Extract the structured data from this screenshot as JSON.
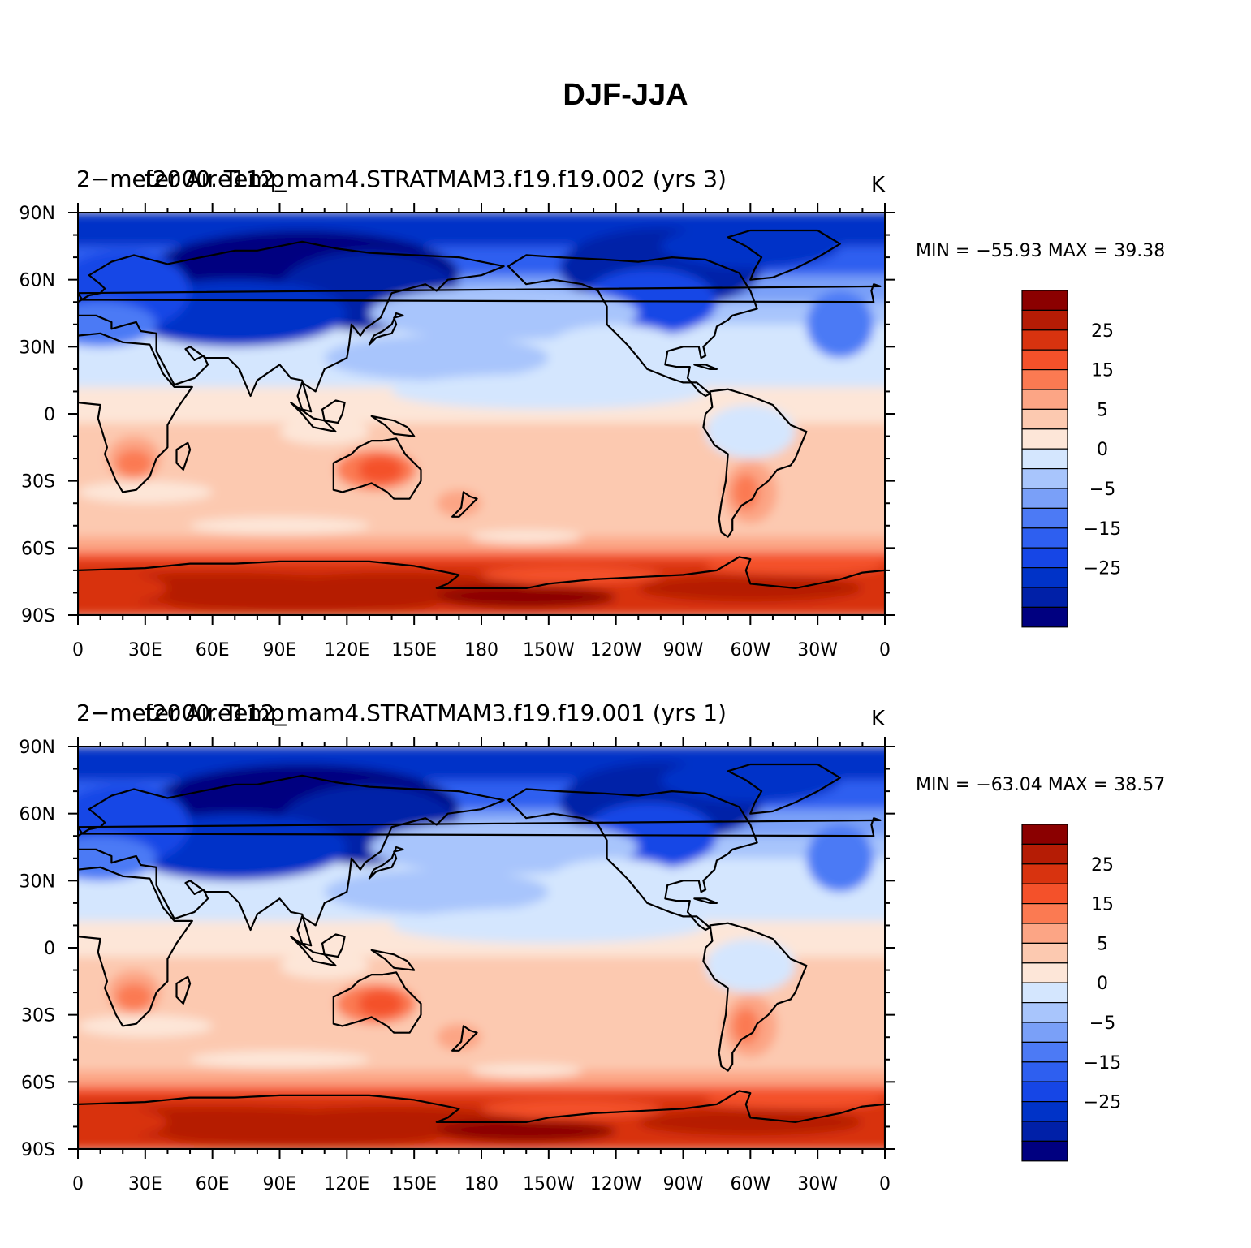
{
  "figure": {
    "title": "DJF-JJA",
    "units": "K",
    "colors": {
      "levels": [
        "#000080",
        "#0020a8",
        "#0033c8",
        "#1646e6",
        "#2e5ff0",
        "#4c7af5",
        "#7aa0f8",
        "#a8c5fc",
        "#d4e6fe",
        "#fde6d8",
        "#fcc9b0",
        "#fca585",
        "#fb7a52",
        "#f4512a",
        "#d8330f",
        "#b51c05",
        "#8b0000"
      ]
    },
    "colorbar_labels": [
      "25",
      "15",
      "5",
      "0",
      "−5",
      "−15",
      "−25"
    ],
    "lon_ticks": [
      "0",
      "30E",
      "60E",
      "90E",
      "120E",
      "150E",
      "180",
      "150W",
      "120W",
      "90W",
      "60W",
      "30W",
      "0"
    ],
    "lat_ticks": [
      "90N",
      "60N",
      "30N",
      "0",
      "30S",
      "60S",
      "90S"
    ]
  },
  "panels": [
    {
      "title_left": "2−meter Air Temp",
      "title_center": "f2000.e112_mam4.STRATMAM3.f19.f19.002 (yrs 3)",
      "units": "K",
      "min_label": "MIN = −55.93 MAX =  39.38"
    },
    {
      "title_left": "2−meter Air Temp",
      "title_center": "f2000.e112_mam4.STRATMAM3.f19.f19.001 (yrs 1)",
      "units": "K",
      "min_label": "MIN = −63.04 MAX =  38.57"
    }
  ]
}
